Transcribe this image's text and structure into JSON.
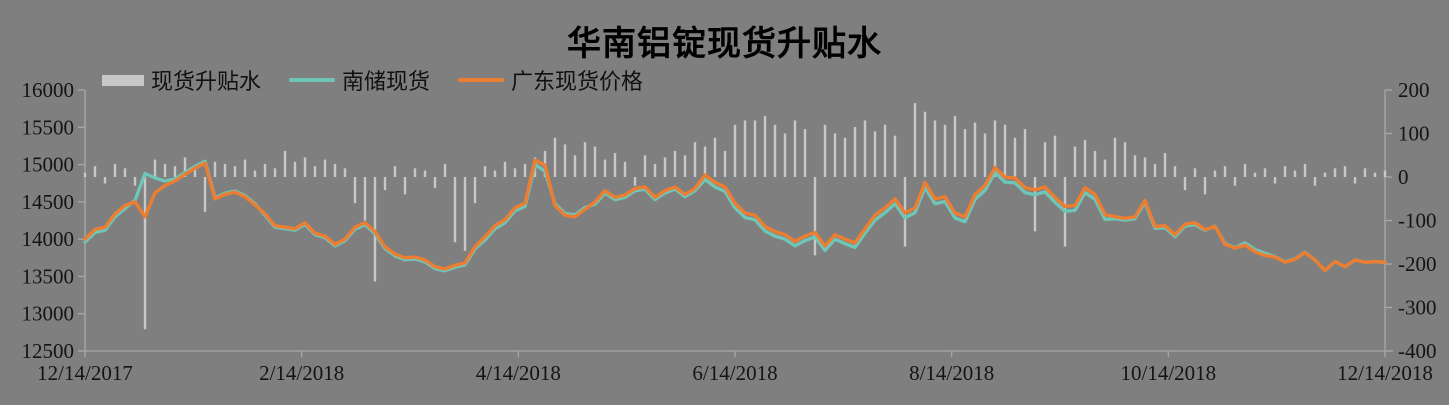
{
  "title": "华南铝锭现货升贴水",
  "colors": {
    "background": "#7f7f7f",
    "bar": "#c8c8c8",
    "teal_line": "#6EC5B8",
    "orange_line": "#ED7D31",
    "axis": "#a8a8a8",
    "text": "#141414"
  },
  "chart_data": {
    "type": "combo",
    "title": "华南铝锭现货升贴水",
    "grid": false,
    "legend_position": "top-left",
    "axis_color": "#a8a8a8",
    "x_labels": [
      "12/14/2017",
      "2/14/2018",
      "4/14/2018",
      "6/14/2018",
      "8/14/2018",
      "10/14/2018",
      "12/14/2018"
    ],
    "left_axis": {
      "min": 12500,
      "max": 16000,
      "ticks": [
        16000,
        15500,
        15000,
        14500,
        14000,
        13500,
        13000,
        12500
      ]
    },
    "right_axis": {
      "min": -400,
      "max": 200,
      "ticks": [
        200,
        100,
        0,
        -100,
        -200,
        -300,
        -400
      ]
    },
    "series": [
      {
        "name": "现货升贴水",
        "type": "bar",
        "axis": "right",
        "color": "#c8c8c8",
        "values": [
          10,
          25,
          -15,
          30,
          20,
          -20,
          -350,
          40,
          30,
          25,
          45,
          20,
          -80,
          35,
          30,
          25,
          40,
          15,
          30,
          20,
          60,
          35,
          45,
          25,
          40,
          30,
          20,
          -60,
          -100,
          -240,
          -30,
          25,
          -40,
          20,
          15,
          -25,
          30,
          -150,
          -170,
          -60,
          25,
          15,
          35,
          20,
          30,
          45,
          60,
          90,
          75,
          50,
          80,
          70,
          40,
          55,
          35,
          -20,
          50,
          30,
          45,
          60,
          50,
          80,
          70,
          90,
          60,
          120,
          130,
          130,
          140,
          120,
          100,
          130,
          110,
          -180,
          120,
          100,
          90,
          115,
          130,
          105,
          120,
          95,
          -160,
          170,
          150,
          130,
          120,
          140,
          110,
          125,
          100,
          130,
          120,
          90,
          110,
          -125,
          80,
          95,
          -160,
          70,
          85,
          60,
          40,
          90,
          80,
          50,
          45,
          30,
          55,
          25,
          -30,
          20,
          -40,
          15,
          25,
          -20,
          30,
          10,
          20,
          -15,
          25,
          15,
          30,
          -20,
          10,
          20,
          25,
          -15,
          20,
          10,
          15
        ]
      },
      {
        "name": "南储现货",
        "type": "line",
        "axis": "left",
        "color": "#6EC5B8",
        "values": [
          13960,
          14090,
          14120,
          14300,
          14410,
          14520,
          14880,
          14820,
          14780,
          14805,
          14895,
          14975,
          15045,
          14555,
          14615,
          14645,
          14585,
          14475,
          14320,
          14160,
          14140,
          14120,
          14200,
          14060,
          14020,
          13910,
          13980,
          14135,
          14195,
          14075,
          13875,
          13775,
          13725,
          13735,
          13695,
          13605,
          13575,
          13625,
          13655,
          13870,
          13990,
          14140,
          14220,
          14380,
          14440,
          15000,
          14910,
          14475,
          14345,
          14325,
          14425,
          14470,
          14620,
          14530,
          14560,
          14650,
          14670,
          14530,
          14620,
          14670,
          14570,
          14650,
          14800,
          14700,
          14640,
          14420,
          14290,
          14260,
          14110,
          14040,
          14000,
          13910,
          13980,
          14030,
          13850,
          14000,
          13940,
          13890,
          14080,
          14255,
          14355,
          14475,
          14285,
          14355,
          14695,
          14475,
          14505,
          14285,
          14235,
          14535,
          14655,
          14895,
          14765,
          14755,
          14625,
          14595,
          14635,
          14495,
          14375,
          14385,
          14625,
          14535,
          14265,
          14275,
          14255,
          14275,
          14495,
          14145,
          14155,
          14035,
          14175,
          14195,
          14120,
          14175,
          13940,
          13885,
          13950,
          13860,
          13810,
          13765,
          13695,
          13735,
          13825,
          13720,
          13580,
          13700,
          13630,
          13720,
          13690,
          13700,
          13690
        ]
      },
      {
        "name": "广东现货价格",
        "type": "line",
        "axis": "left",
        "color": "#ED7D31",
        "values": [
          14000,
          14130,
          14160,
          14340,
          14450,
          14500,
          14300,
          14620,
          14720,
          14780,
          14870,
          14950,
          15020,
          14540,
          14600,
          14630,
          14570,
          14460,
          14340,
          14180,
          14160,
          14140,
          14220,
          14080,
          14040,
          13930,
          14000,
          14160,
          14220,
          14100,
          13900,
          13800,
          13750,
          13760,
          13720,
          13630,
          13600,
          13650,
          13680,
          13900,
          14030,
          14180,
          14260,
          14420,
          14480,
          15060,
          14990,
          14450,
          14320,
          14300,
          14400,
          14500,
          14650,
          14560,
          14590,
          14680,
          14700,
          14560,
          14650,
          14700,
          14600,
          14680,
          14860,
          14760,
          14700,
          14480,
          14350,
          14320,
          14170,
          14100,
          14060,
          13970,
          14040,
          14090,
          13910,
          14060,
          14000,
          13950,
          14140,
          14320,
          14420,
          14540,
          14350,
          14420,
          14760,
          14540,
          14570,
          14350,
          14300,
          14600,
          14720,
          14960,
          14830,
          14820,
          14690,
          14660,
          14700,
          14560,
          14440,
          14450,
          14690,
          14600,
          14330,
          14300,
          14280,
          14300,
          14520,
          14170,
          14180,
          14060,
          14200,
          14220,
          14130,
          14170,
          13930,
          13880,
          13920,
          13830,
          13780,
          13760,
          13690,
          13730,
          13820,
          13720,
          13580,
          13700,
          13630,
          13720,
          13690,
          13700,
          13690
        ]
      }
    ]
  }
}
